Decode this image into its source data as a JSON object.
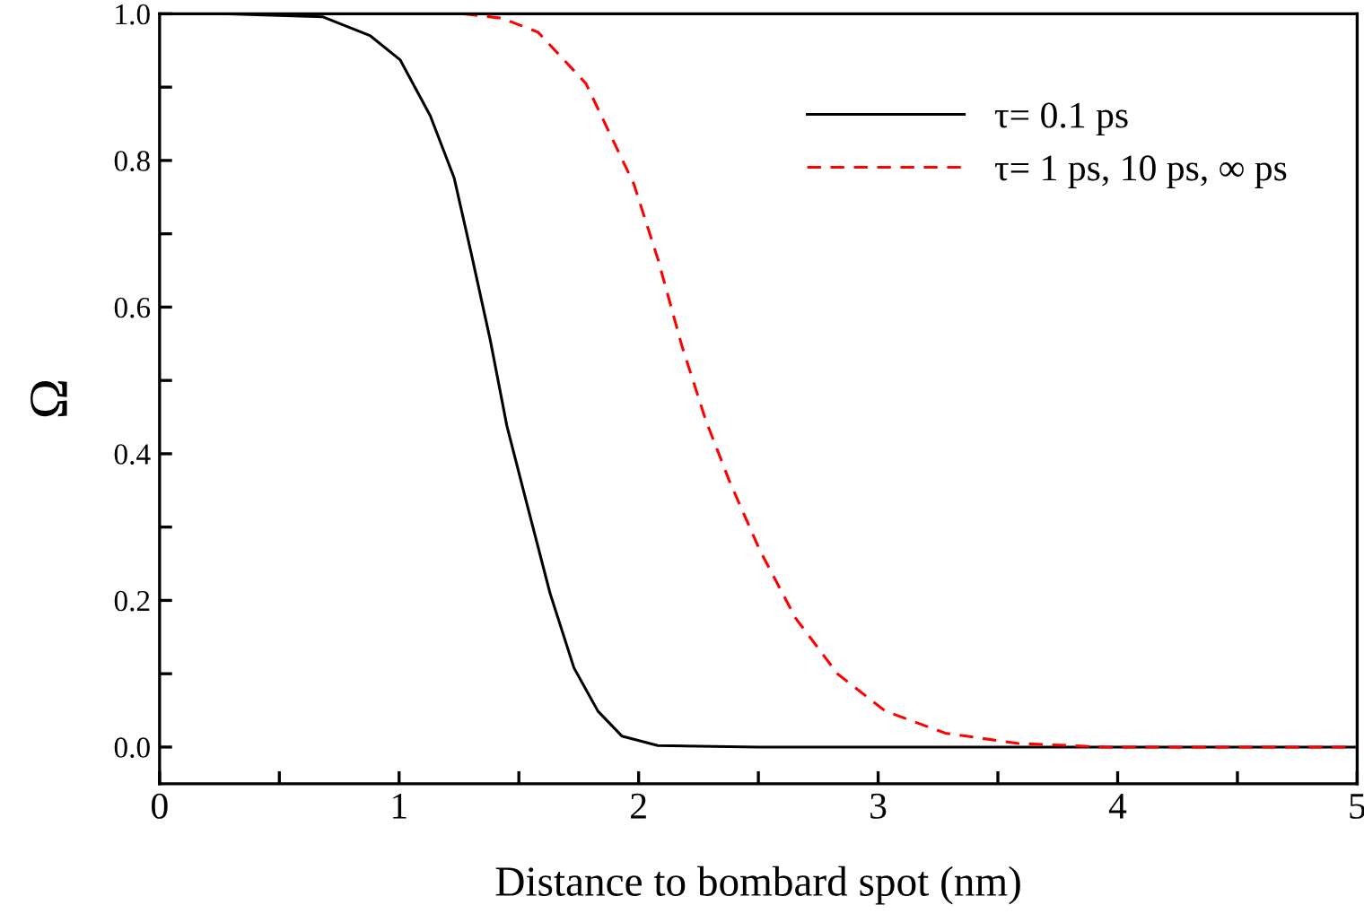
{
  "chart_data": {
    "type": "line",
    "xlabel": "Distance to bombard spot (nm)",
    "ylabel": "Ω",
    "series": [
      {
        "name": "τ= 0.1 ps",
        "color": "#000000",
        "line_style": "solid",
        "x": [
          0.29,
          0.68,
          0.88,
          1.005,
          1.13,
          1.23,
          1.3,
          1.38,
          1.45,
          1.53,
          1.63,
          1.73,
          1.83,
          1.93,
          2.08,
          2.5,
          3.0,
          4.0,
          5.0
        ],
        "values": [
          1.0,
          0.996,
          0.97,
          0.937,
          0.861,
          0.776,
          0.675,
          0.556,
          0.438,
          0.336,
          0.21,
          0.108,
          0.049,
          0.015,
          0.002,
          0.0,
          0.0,
          0.0,
          0.0
        ]
      },
      {
        "name": "τ= 1 ps, 10 ps, ∞ ps",
        "color": "#ff0000",
        "line_style": "dashed",
        "x": [
          1.27,
          1.43,
          1.58,
          1.78,
          1.98,
          2.08,
          2.18,
          2.28,
          2.38,
          2.505,
          2.655,
          2.83,
          3.03,
          3.28,
          3.58,
          3.95,
          4.5,
          5.0
        ],
        "values": [
          1.0,
          0.994,
          0.975,
          0.905,
          0.768,
          0.666,
          0.548,
          0.446,
          0.362,
          0.269,
          0.176,
          0.1,
          0.049,
          0.019,
          0.005,
          0.0,
          0.0,
          0.0
        ]
      }
    ],
    "xlim": [
      0,
      5
    ],
    "xticks": [
      0,
      {
        "value": 0.5,
        "label": null
      },
      1,
      {
        "value": 1.5,
        "label": null
      },
      2,
      {
        "value": 2.5,
        "label": null
      },
      3,
      {
        "value": 3.5,
        "label": null
      },
      4,
      {
        "value": 4.5,
        "label": null
      },
      5
    ],
    "ylim": [
      -0.05,
      1.0
    ],
    "yticks": [
      {
        "value": 0,
        "label": "0.0"
      },
      {
        "value": 0.1,
        "label": null
      },
      {
        "value": 0.2,
        "label": "0.2"
      },
      {
        "value": 0.3,
        "label": null
      },
      {
        "value": 0.4,
        "label": "0.4"
      },
      {
        "value": 0.5,
        "label": null
      },
      {
        "value": 0.6,
        "label": "0.6"
      },
      {
        "value": 0.7,
        "label": null
      },
      {
        "value": 0.8,
        "label": "0.8"
      },
      {
        "value": 0.9,
        "label": null
      },
      {
        "value": 1.0,
        "label": "1.0"
      }
    ],
    "grid": false,
    "legend": "top right"
  }
}
